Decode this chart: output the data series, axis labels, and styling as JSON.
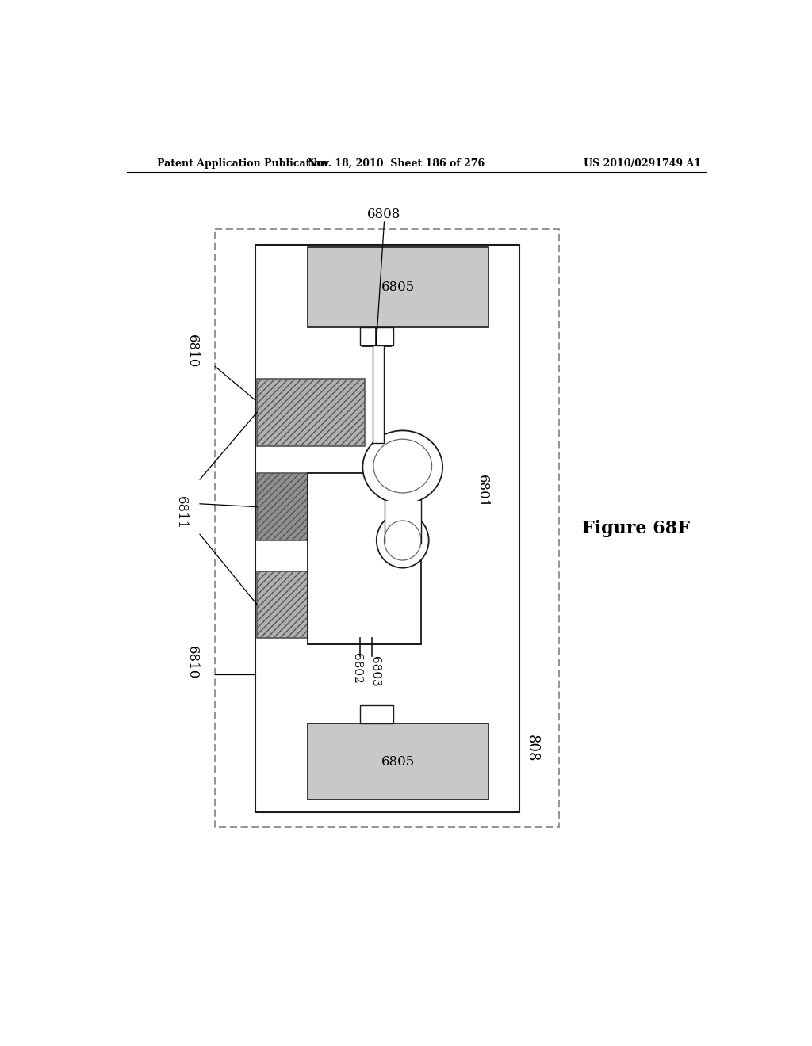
{
  "bg_color": "#ffffff",
  "header_left": "Patent Application Publication",
  "header_mid": "Nov. 18, 2010  Sheet 186 of 276",
  "header_right": "US 2010/0291749 A1",
  "fig_label": "Figure 68F",
  "light_gray": "#c8c8c8",
  "line_color": "#1a1a1a",
  "hatch_light": "#b8b8b8",
  "hatch_dark": "#888888"
}
